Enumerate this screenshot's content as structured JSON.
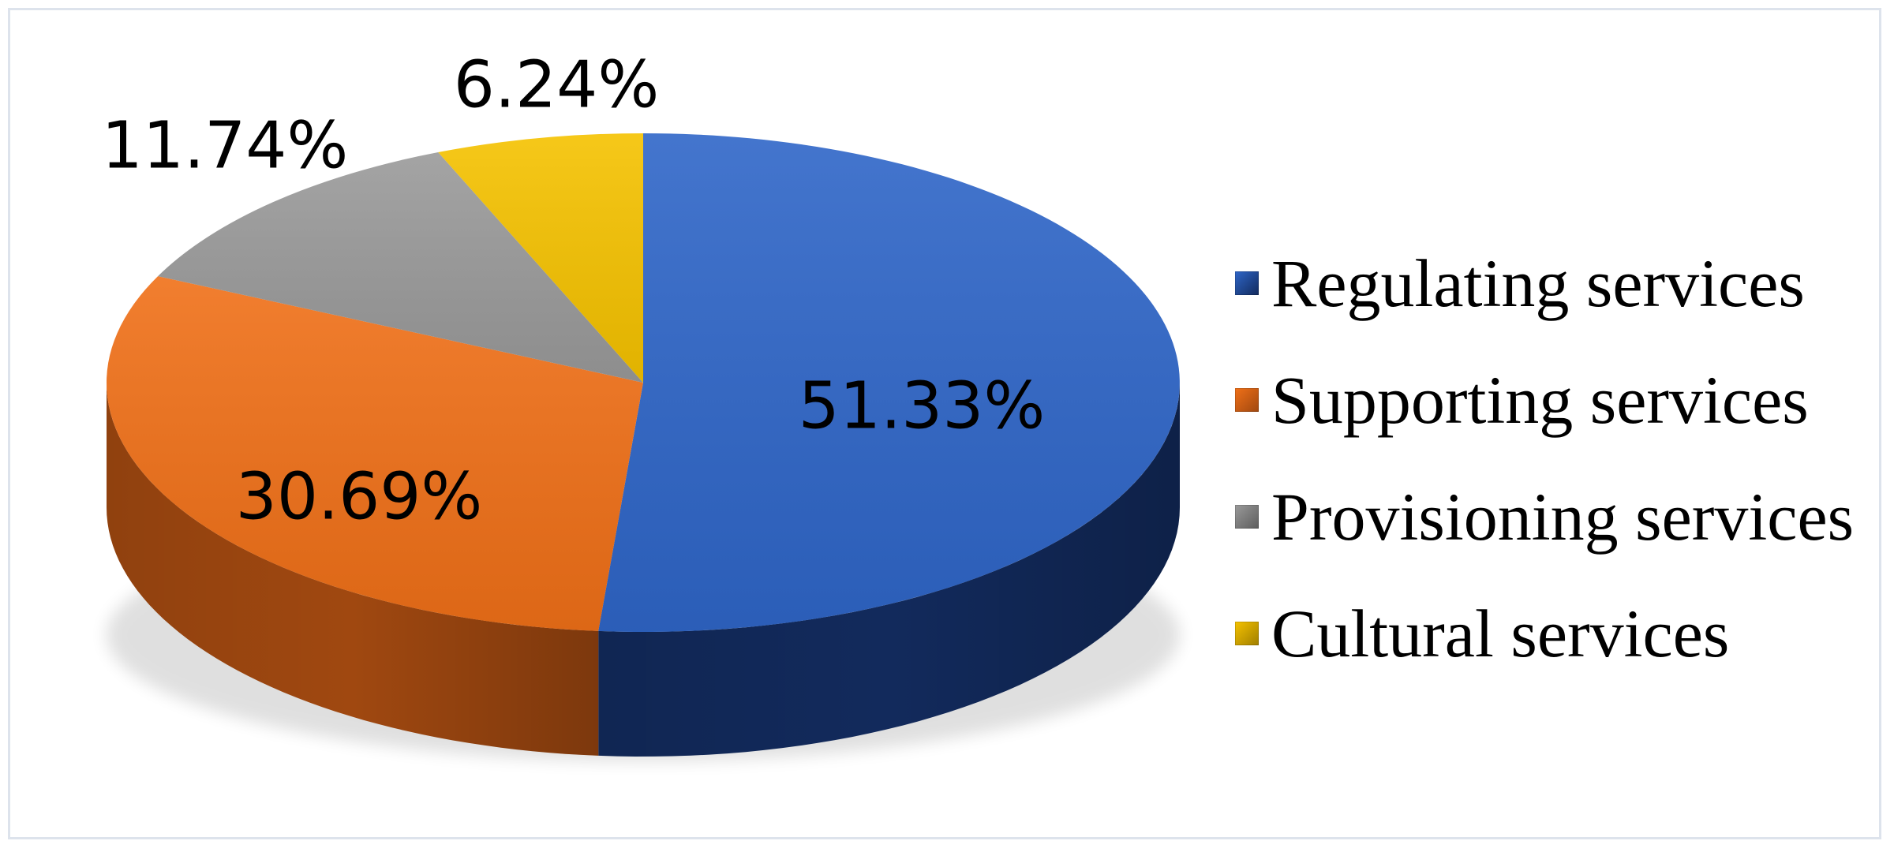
{
  "chart_data": {
    "type": "pie",
    "three_d": true,
    "categories": [
      "Regulating services",
      "Supporting services",
      "Provisioning services",
      "Cultural services"
    ],
    "values": [
      51.33,
      30.69,
      11.74,
      6.24
    ],
    "labels": [
      "51.33%",
      "30.69%",
      "11.74%",
      "6.24%"
    ],
    "colors": [
      "#2f66c8",
      "#f07018",
      "#9a9a9a",
      "#f5c200"
    ],
    "side_colors": [
      "#122a5c",
      "#a04810",
      "#5c5c5c",
      "#a07e00"
    ],
    "legend_position": "right",
    "start": "top",
    "direction": "clockwise"
  }
}
